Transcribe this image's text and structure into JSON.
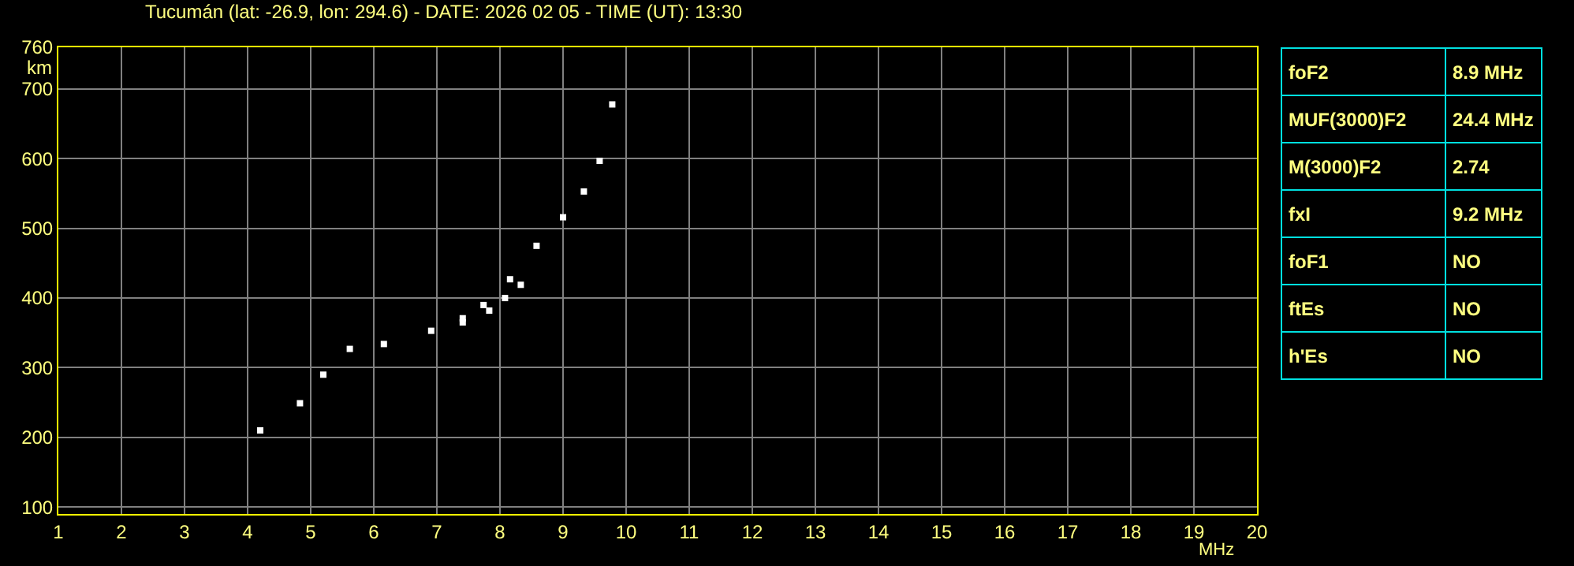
{
  "chart_data": [
    {
      "type": "scatter",
      "title": "Tucumán (lat: -26.9, lon: 294.6) - DATE: 2026 02 05 - TIME (UT): 13:30",
      "xlabel": "MHz",
      "ylabel": "km",
      "marker": "square",
      "grid": true,
      "xlim": [
        1,
        20
      ],
      "xticks": [
        1,
        2,
        3,
        4,
        5,
        6,
        7,
        8,
        9,
        10,
        11,
        12,
        13,
        14,
        15,
        16,
        17,
        18,
        19,
        20
      ],
      "ylim": [
        90,
        760
      ],
      "yticks": [
        100,
        200,
        300,
        400,
        500,
        600,
        700,
        760
      ],
      "series": [
        {
          "color": "#ffffff",
          "x": [
            4.2,
            4.83,
            5.2,
            5.62,
            6.16,
            6.91,
            7.41,
            7.74,
            8.16,
            8.58,
            9.0,
            9.33,
            9.58,
            9.78
          ],
          "values": [
            210,
            249,
            290,
            327,
            334,
            353,
            371,
            390,
            427,
            475,
            516,
            553,
            597,
            678
          ]
        },
        {
          "color": "#ffffff",
          "x": [
            7.41,
            7.83,
            8.08,
            8.33
          ],
          "values": [
            365,
            382,
            400,
            419
          ]
        }
      ]
    },
    {
      "type": "other",
      "annotations": [
        "foF2",
        "8.9 MHz",
        "MUF(3000)F2",
        "24.4 MHz",
        "M(3000)F2",
        "2.74",
        "fxI",
        "9.2 MHz",
        "foF1",
        "NO",
        "ftEs",
        "NO",
        "h'Es",
        "NO"
      ]
    }
  ]
}
